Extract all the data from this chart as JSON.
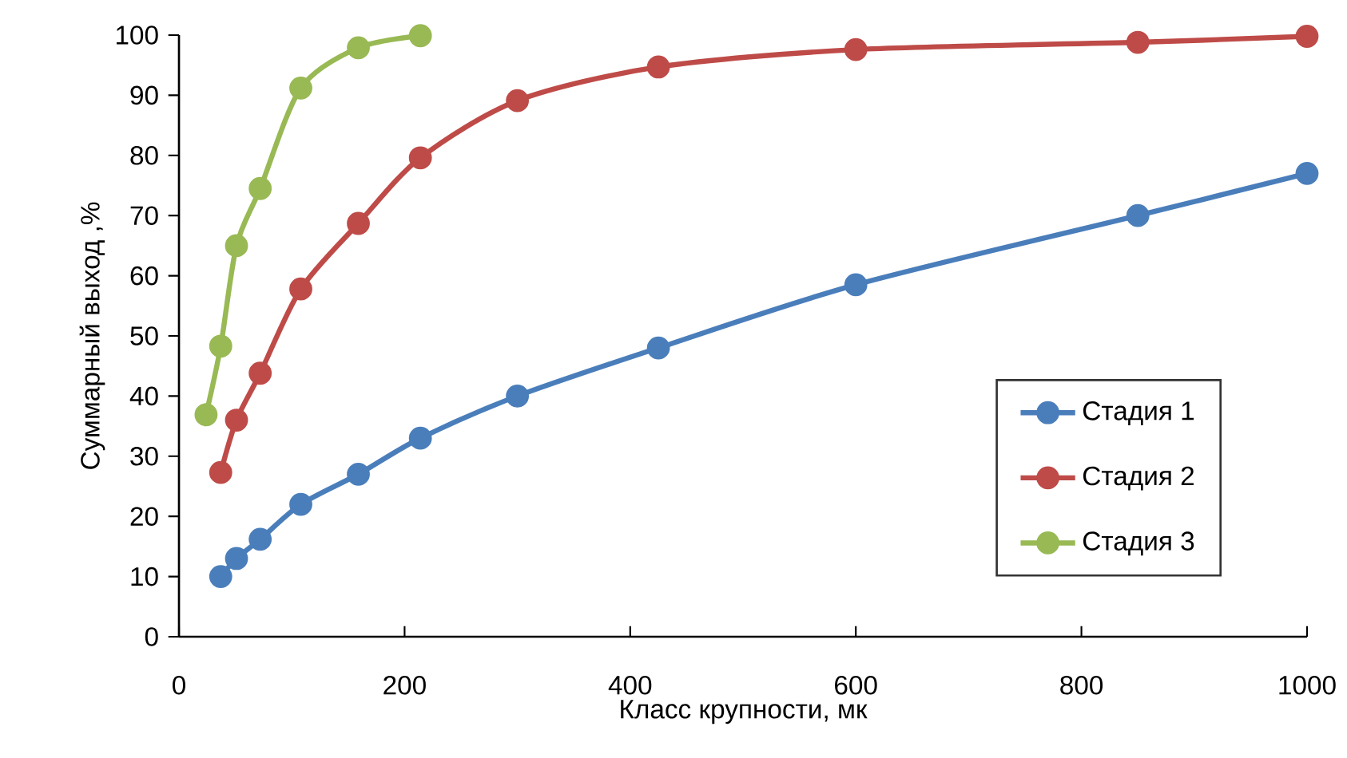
{
  "chart_data": {
    "type": "line",
    "xlabel": "Класс крупности, мк",
    "ylabel": "Суммарный выход ,%",
    "xlim": [
      0,
      1000
    ],
    "ylim": [
      0,
      100
    ],
    "xticks": [
      0,
      200,
      400,
      600,
      800,
      1000
    ],
    "yticks": [
      0,
      10,
      20,
      30,
      40,
      50,
      60,
      70,
      80,
      90,
      100
    ],
    "grid": false,
    "legend": "right",
    "marker": "circle",
    "line_style": "solid",
    "series": [
      {
        "name": "Стадия 1",
        "color": "#4a7ebb",
        "x": [
          37,
          51,
          72,
          108,
          159,
          214,
          300,
          425,
          600,
          850,
          1000
        ],
        "values": [
          10,
          13,
          16.2,
          22,
          27,
          33,
          40,
          48,
          58.5,
          70,
          77
        ]
      },
      {
        "name": "Стадия 2",
        "color": "#be4b48",
        "x": [
          37,
          51,
          72,
          108,
          159,
          214,
          300,
          425,
          600,
          850,
          1000
        ],
        "values": [
          27.3,
          36,
          43.8,
          57.8,
          68.7,
          79.6,
          89.1,
          94.7,
          97.6,
          98.8,
          99.8
        ]
      },
      {
        "name": "Стадия 3",
        "color": "#98b954",
        "x": [
          24,
          37,
          51,
          72,
          108,
          159,
          214
        ],
        "values": [
          36.9,
          48.3,
          65,
          74.5,
          91.2,
          97.9,
          99.9
        ]
      }
    ]
  }
}
